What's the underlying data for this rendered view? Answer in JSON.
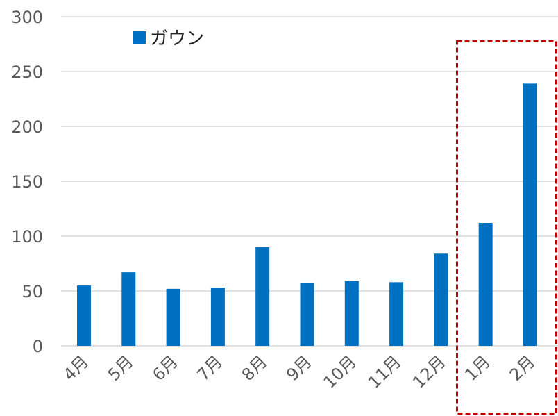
{
  "chart_data": {
    "type": "bar",
    "categories": [
      "4月",
      "5月",
      "6月",
      "7月",
      "8月",
      "9月",
      "10月",
      "11月",
      "12月",
      "1月",
      "2月"
    ],
    "series": [
      {
        "name": "ガウン",
        "values": [
          55,
          67,
          52,
          53,
          90,
          57,
          59,
          58,
          84,
          112,
          239
        ]
      }
    ],
    "y_ticks": [
      0,
      50,
      100,
      150,
      200,
      250,
      300
    ],
    "ylim": [
      0,
      300
    ],
    "grid": true,
    "legend_position": "top-left",
    "highlight": {
      "categories": [
        "1月",
        "2月"
      ],
      "style": "red dashed box"
    },
    "colors": {
      "bar": "#0070C0",
      "grid": "#D9D9D9",
      "highlight": "#C00000",
      "axis_text": "#595959"
    }
  }
}
